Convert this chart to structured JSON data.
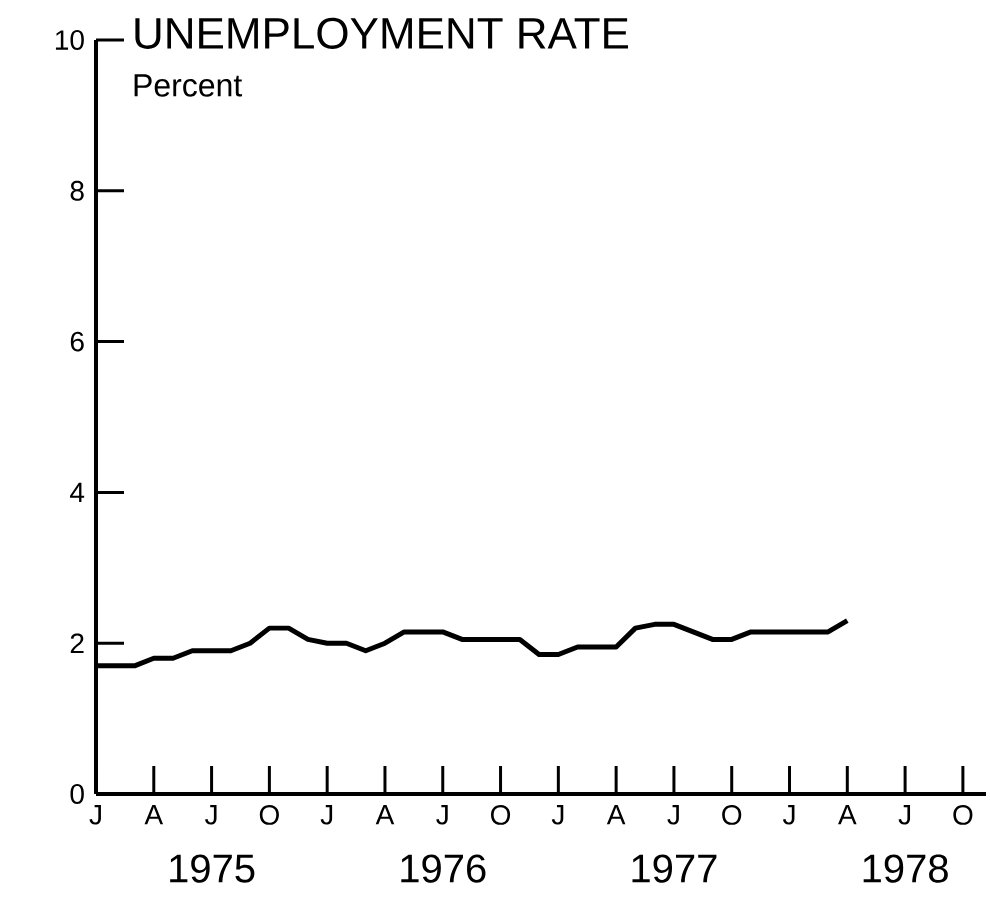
{
  "chart_data": {
    "type": "line",
    "title": "UNEMPLOYMENT RATE",
    "subtitle": "Percent",
    "categories": [
      "J",
      null,
      null,
      "A",
      null,
      null,
      "J",
      null,
      null,
      "O",
      null,
      null,
      "J",
      null,
      null,
      "A",
      null,
      null,
      "J",
      null,
      null,
      "O",
      null,
      null,
      "J",
      null,
      null,
      "A",
      null,
      null,
      "J",
      null,
      null,
      "O",
      null,
      null,
      "J",
      null,
      null,
      "A",
      null,
      null,
      "J",
      null,
      null,
      "O",
      null
    ],
    "values": [
      1.7,
      1.7,
      1.7,
      1.8,
      1.8,
      1.9,
      1.9,
      1.9,
      2.0,
      2.2,
      2.2,
      2.05,
      2.0,
      2.0,
      1.9,
      2.0,
      2.15,
      2.15,
      2.15,
      2.05,
      2.05,
      2.05,
      2.05,
      1.85,
      1.85,
      1.95,
      1.95,
      1.95,
      2.2,
      2.25,
      2.25,
      2.15,
      2.05,
      2.05,
      2.15,
      2.15,
      2.15,
      2.15,
      2.15,
      2.3,
      null,
      null,
      null,
      null,
      null,
      null,
      null
    ],
    "color": "#000000",
    "ylim": [
      0,
      10
    ],
    "yticks": [
      0,
      2,
      4,
      6,
      8,
      10
    ],
    "annotations": [
      "1975",
      "1976",
      "1977",
      "1978"
    ]
  }
}
